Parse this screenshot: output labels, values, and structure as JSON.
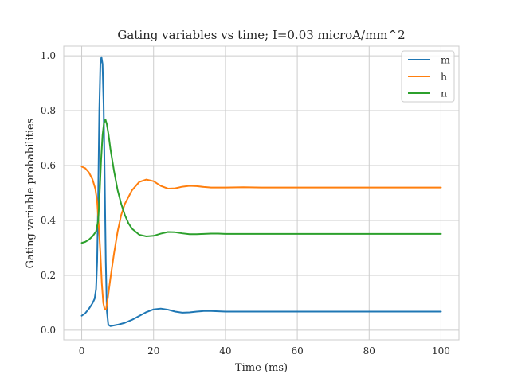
{
  "chart_data": {
    "type": "line",
    "title": "Gating variables vs time; I=0.03 microA/mm^2",
    "xlabel": "Time (ms)",
    "ylabel": "Gating variable probabilities",
    "xlim": [
      -5,
      105
    ],
    "ylim": [
      -0.035,
      1.035
    ],
    "xticks": [
      0,
      20,
      40,
      60,
      80,
      100
    ],
    "xtick_labels": [
      "0",
      "20",
      "40",
      "60",
      "80",
      "100"
    ],
    "yticks": [
      0.0,
      0.2,
      0.4,
      0.6,
      0.8,
      1.0
    ],
    "ytick_labels": [
      "0.0",
      "0.2",
      "0.4",
      "0.6",
      "0.8",
      "1.0"
    ],
    "grid": true,
    "legend_position": "top-right",
    "series": [
      {
        "name": "m",
        "color": "#1f77b4",
        "points": [
          [
            0,
            0.053
          ],
          [
            1,
            0.062
          ],
          [
            2,
            0.078
          ],
          [
            3,
            0.098
          ],
          [
            3.6,
            0.115
          ],
          [
            4,
            0.15
          ],
          [
            4.3,
            0.25
          ],
          [
            4.6,
            0.5
          ],
          [
            4.9,
            0.8
          ],
          [
            5.2,
            0.97
          ],
          [
            5.5,
            0.995
          ],
          [
            5.8,
            0.97
          ],
          [
            6.1,
            0.82
          ],
          [
            6.4,
            0.55
          ],
          [
            6.7,
            0.25
          ],
          [
            7,
            0.07
          ],
          [
            7.4,
            0.02
          ],
          [
            8,
            0.015
          ],
          [
            10,
            0.02
          ],
          [
            12,
            0.027
          ],
          [
            14,
            0.038
          ],
          [
            16,
            0.052
          ],
          [
            18,
            0.066
          ],
          [
            20,
            0.076
          ],
          [
            22,
            0.079
          ],
          [
            24,
            0.075
          ],
          [
            26,
            0.068
          ],
          [
            28,
            0.064
          ],
          [
            30,
            0.065
          ],
          [
            32,
            0.068
          ],
          [
            34,
            0.07
          ],
          [
            36,
            0.07
          ],
          [
            38,
            0.069
          ],
          [
            40,
            0.068
          ],
          [
            45,
            0.068
          ],
          [
            50,
            0.068
          ],
          [
            60,
            0.068
          ],
          [
            70,
            0.068
          ],
          [
            80,
            0.068
          ],
          [
            90,
            0.068
          ],
          [
            100,
            0.068
          ]
        ]
      },
      {
        "name": "h",
        "color": "#ff7f0e",
        "points": [
          [
            0,
            0.596
          ],
          [
            1,
            0.59
          ],
          [
            2,
            0.575
          ],
          [
            3,
            0.55
          ],
          [
            3.8,
            0.515
          ],
          [
            4.3,
            0.47
          ],
          [
            4.8,
            0.37
          ],
          [
            5.2,
            0.28
          ],
          [
            5.6,
            0.17
          ],
          [
            6,
            0.1
          ],
          [
            6.4,
            0.075
          ],
          [
            6.8,
            0.078
          ],
          [
            7.3,
            0.12
          ],
          [
            8,
            0.19
          ],
          [
            9,
            0.28
          ],
          [
            10,
            0.36
          ],
          [
            11,
            0.42
          ],
          [
            12,
            0.46
          ],
          [
            14,
            0.51
          ],
          [
            16,
            0.54
          ],
          [
            18,
            0.549
          ],
          [
            20,
            0.543
          ],
          [
            22,
            0.526
          ],
          [
            24,
            0.516
          ],
          [
            26,
            0.517
          ],
          [
            28,
            0.523
          ],
          [
            30,
            0.526
          ],
          [
            32,
            0.525
          ],
          [
            34,
            0.522
          ],
          [
            36,
            0.52
          ],
          [
            38,
            0.52
          ],
          [
            40,
            0.52
          ],
          [
            45,
            0.521
          ],
          [
            50,
            0.52
          ],
          [
            60,
            0.52
          ],
          [
            70,
            0.52
          ],
          [
            80,
            0.52
          ],
          [
            90,
            0.52
          ],
          [
            100,
            0.52
          ]
        ]
      },
      {
        "name": "n",
        "color": "#2ca02c",
        "points": [
          [
            0,
            0.318
          ],
          [
            1,
            0.322
          ],
          [
            2,
            0.33
          ],
          [
            3,
            0.342
          ],
          [
            4,
            0.36
          ],
          [
            4.6,
            0.4
          ],
          [
            5,
            0.5
          ],
          [
            5.4,
            0.62
          ],
          [
            5.8,
            0.71
          ],
          [
            6.2,
            0.755
          ],
          [
            6.6,
            0.768
          ],
          [
            7,
            0.75
          ],
          [
            7.5,
            0.71
          ],
          [
            8,
            0.66
          ],
          [
            9,
            0.58
          ],
          [
            10,
            0.51
          ],
          [
            11,
            0.46
          ],
          [
            12,
            0.42
          ],
          [
            13,
            0.39
          ],
          [
            14,
            0.37
          ],
          [
            16,
            0.348
          ],
          [
            18,
            0.342
          ],
          [
            20,
            0.344
          ],
          [
            22,
            0.352
          ],
          [
            24,
            0.358
          ],
          [
            26,
            0.357
          ],
          [
            28,
            0.353
          ],
          [
            30,
            0.35
          ],
          [
            32,
            0.35
          ],
          [
            34,
            0.351
          ],
          [
            36,
            0.352
          ],
          [
            38,
            0.352
          ],
          [
            40,
            0.351
          ],
          [
            45,
            0.351
          ],
          [
            50,
            0.351
          ],
          [
            60,
            0.351
          ],
          [
            70,
            0.351
          ],
          [
            80,
            0.351
          ],
          [
            90,
            0.351
          ],
          [
            100,
            0.351
          ]
        ]
      }
    ]
  }
}
